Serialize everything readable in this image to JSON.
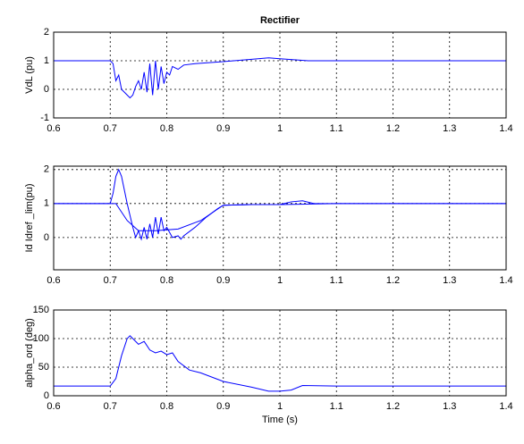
{
  "chart_data": [
    {
      "type": "line",
      "title": "Rectifier",
      "ylabel": "VdL (pu)",
      "xlim": [
        0.6,
        1.4
      ],
      "xticks": [
        0.6,
        0.7,
        0.8,
        0.9,
        1,
        1.1,
        1.2,
        1.3,
        1.4
      ],
      "ylim": [
        -1,
        2
      ],
      "yticks": [
        -1,
        0,
        1,
        2
      ],
      "grid": true,
      "series": [
        {
          "color": "#0000ff",
          "x": [
            0.6,
            0.7,
            0.705,
            0.71,
            0.715,
            0.72,
            0.73,
            0.735,
            0.74,
            0.745,
            0.75,
            0.755,
            0.76,
            0.765,
            0.77,
            0.775,
            0.78,
            0.785,
            0.79,
            0.795,
            0.8,
            0.805,
            0.81,
            0.82,
            0.83,
            0.85,
            0.9,
            0.95,
            0.98,
            1.0,
            1.05,
            1.1,
            1.4
          ],
          "values": [
            1,
            1,
            0.9,
            0.3,
            0.5,
            0.0,
            -0.2,
            -0.3,
            -0.2,
            0.1,
            0.3,
            0.0,
            0.6,
            -0.1,
            0.9,
            -0.2,
            1.0,
            0.0,
            0.8,
            0.2,
            0.6,
            0.5,
            0.8,
            0.7,
            0.85,
            0.9,
            0.97,
            1.05,
            1.1,
            1.07,
            1.0,
            1.0,
            1.0
          ]
        }
      ]
    },
    {
      "type": "line",
      "ylabel": "Id  Idref _lim(pu)",
      "xlim": [
        0.6,
        1.4
      ],
      "xticks": [
        0.6,
        0.7,
        0.8,
        0.9,
        1,
        1.1,
        1.2,
        1.3,
        1.4
      ],
      "ylim": [
        -0.95,
        2.1
      ],
      "yticks": [
        0,
        1,
        2
      ],
      "grid": true,
      "series": [
        {
          "color": "#0000ff",
          "x": [
            0.6,
            0.7,
            0.705,
            0.71,
            0.715,
            0.72,
            0.73,
            0.74,
            0.745,
            0.75,
            0.755,
            0.76,
            0.765,
            0.77,
            0.775,
            0.78,
            0.785,
            0.79,
            0.795,
            0.8,
            0.81,
            0.82,
            0.825,
            0.83,
            0.85,
            0.87,
            0.89,
            0.9,
            0.95,
            1.0,
            1.02,
            1.04,
            1.06,
            1.1,
            1.4
          ],
          "values": [
            1,
            1,
            1.3,
            1.8,
            2.0,
            1.8,
            1.0,
            0.3,
            0.0,
            0.2,
            -0.05,
            0.3,
            -0.05,
            0.4,
            0.0,
            0.6,
            0.1,
            0.6,
            0.2,
            0.3,
            0.0,
            0.05,
            -0.05,
            0.05,
            0.3,
            0.6,
            0.85,
            0.95,
            0.97,
            0.97,
            1.05,
            1.08,
            1.0,
            1.0,
            1.0
          ]
        },
        {
          "color": "#0000ff",
          "x": [
            0.6,
            0.71,
            0.73,
            0.75,
            0.78,
            0.82,
            0.86,
            0.9,
            0.95,
            1.0,
            1.1,
            1.4
          ],
          "values": [
            1,
            1,
            0.5,
            0.2,
            0.2,
            0.25,
            0.5,
            0.95,
            0.97,
            0.97,
            1.0,
            1.0
          ]
        }
      ]
    },
    {
      "type": "line",
      "ylabel": "alpha_ord (deg)",
      "xlabel": "Time (s)",
      "xlim": [
        0.6,
        1.4
      ],
      "xticks": [
        0.6,
        0.7,
        0.8,
        0.9,
        1,
        1.1,
        1.2,
        1.3,
        1.4
      ],
      "ylim": [
        0,
        150
      ],
      "yticks": [
        0,
        50,
        100,
        150
      ],
      "grid": true,
      "series": [
        {
          "color": "#0000ff",
          "x": [
            0.6,
            0.7,
            0.71,
            0.72,
            0.73,
            0.735,
            0.74,
            0.75,
            0.76,
            0.77,
            0.78,
            0.79,
            0.8,
            0.81,
            0.82,
            0.84,
            0.86,
            0.9,
            0.95,
            0.98,
            1.0,
            1.02,
            1.04,
            1.1,
            1.4
          ],
          "values": [
            17,
            17,
            30,
            70,
            100,
            105,
            100,
            90,
            95,
            80,
            75,
            78,
            72,
            75,
            60,
            45,
            40,
            25,
            15,
            8,
            8,
            10,
            18,
            17,
            17
          ]
        }
      ]
    }
  ]
}
